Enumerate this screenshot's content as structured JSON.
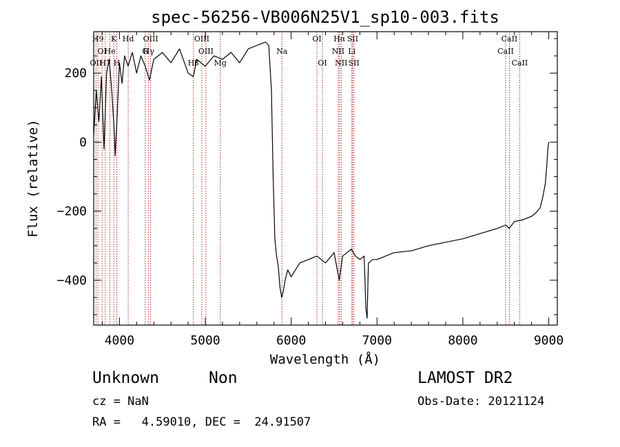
{
  "chart_data": {
    "type": "line",
    "title": "spec-56256-VB006N25V1_sp10-003.fits",
    "xlabel": "Wavelength (Å)",
    "ylabel": "Flux (relative)",
    "xlim": [
      3700,
      9100
    ],
    "ylim": [
      -530,
      320
    ],
    "xticks": [
      4000,
      5000,
      6000,
      7000,
      8000,
      9000
    ],
    "yticks": [
      -400,
      -200,
      0,
      200
    ],
    "line_color": "#000000",
    "marker_color": "#b22222",
    "series": [
      {
        "x": [
          3700,
          3730,
          3760,
          3790,
          3820,
          3850,
          3880,
          3910,
          3940,
          3950,
          3970,
          4000,
          4030,
          4060,
          4100,
          4150,
          4200,
          4250,
          4300,
          4350,
          4400,
          4500,
          4600,
          4700,
          4800,
          4861,
          4900,
          5000,
          5100,
          5200,
          5300,
          5400,
          5500,
          5600,
          5700,
          5740,
          5770,
          5790,
          5810,
          5830,
          5850,
          5870,
          5890,
          5910,
          5930,
          5960,
          6000,
          6050,
          6100,
          6200,
          6300,
          6400,
          6500,
          6560,
          6600,
          6650,
          6700,
          6750,
          6800,
          6850,
          6870,
          6885,
          6900,
          6950,
          7000,
          7200,
          7400,
          7600,
          7800,
          8000,
          8200,
          8400,
          8500,
          8540,
          8600,
          8700,
          8800,
          8850,
          8900,
          8930,
          8960,
          8980,
          8990,
          9000
        ],
        "y": [
          20,
          150,
          60,
          190,
          -20,
          200,
          240,
          150,
          30,
          -40,
          60,
          230,
          170,
          250,
          220,
          260,
          200,
          250,
          220,
          180,
          240,
          260,
          230,
          270,
          200,
          190,
          240,
          220,
          250,
          240,
          260,
          230,
          270,
          280,
          290,
          280,
          150,
          -100,
          -280,
          -330,
          -360,
          -420,
          -450,
          -430,
          -400,
          -370,
          -390,
          -370,
          -350,
          -340,
          -330,
          -350,
          -320,
          -400,
          -330,
          -320,
          -310,
          -330,
          -340,
          -330,
          -480,
          -510,
          -350,
          -340,
          -340,
          -320,
          -315,
          -300,
          -290,
          -280,
          -265,
          -250,
          -240,
          -250,
          -230,
          -225,
          -215,
          -205,
          -190,
          -160,
          -120,
          -60,
          -20,
          0
        ]
      }
    ],
    "lines": [
      {
        "x": 3727,
        "label": "OII",
        "row": 3
      },
      {
        "x": 3750,
        "label": "H9",
        "row": 1
      },
      {
        "x": 3798,
        "label": "OI",
        "row": 2
      },
      {
        "x": 3835,
        "label": "H7",
        "row": 3
      },
      {
        "x": 3889,
        "label": "He",
        "row": 2
      },
      {
        "x": 3934,
        "label": "K",
        "row": 1
      },
      {
        "x": 3969,
        "label": "H",
        "row": 3
      },
      {
        "x": 4102,
        "label": "Hd",
        "row": 1
      },
      {
        "x": 4300,
        "label": "G",
        "row": 2
      },
      {
        "x": 4340,
        "label": "Hγ",
        "row": 2
      },
      {
        "x": 4363,
        "label": "OIII",
        "row": 1
      },
      {
        "x": 4861,
        "label": "Hβ",
        "row": 3
      },
      {
        "x": 4959,
        "label": "OIII",
        "row": 1
      },
      {
        "x": 5007,
        "label": "OIII",
        "row": 2
      },
      {
        "x": 5175,
        "label": "Mg",
        "row": 3
      },
      {
        "x": 5893,
        "label": "Na",
        "row": 2
      },
      {
        "x": 6300,
        "label": "OI",
        "row": 1
      },
      {
        "x": 6364,
        "label": "OI",
        "row": 3
      },
      {
        "x": 6548,
        "label": "NII",
        "row": 2
      },
      {
        "x": 6563,
        "label": "Hα",
        "row": 1
      },
      {
        "x": 6583,
        "label": "NII",
        "row": 3
      },
      {
        "x": 6707,
        "label": "Li",
        "row": 2
      },
      {
        "x": 6716,
        "label": "SII",
        "row": 1
      },
      {
        "x": 6731,
        "label": "SII",
        "row": 3
      },
      {
        "x": 8498,
        "label": "CaII",
        "row": 2
      },
      {
        "x": 8542,
        "label": "CaII",
        "row": 1
      },
      {
        "x": 8662,
        "label": "CaII",
        "row": 3
      }
    ]
  },
  "info": {
    "class": "Unknown",
    "subclass": "Non",
    "survey": "LAMOST DR2",
    "cz": "cz = NaN",
    "obsdate": "Obs-Date: 20121124",
    "radec": "RA =   4.59010, DEC =  24.91507"
  }
}
